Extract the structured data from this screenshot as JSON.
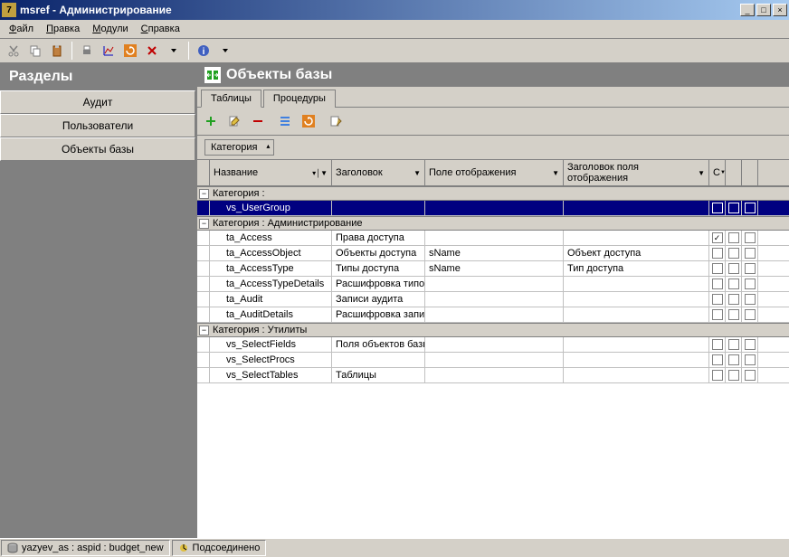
{
  "window": {
    "title": "msref - Администрирование"
  },
  "menu": {
    "items": [
      "Файл",
      "Правка",
      "Модули",
      "Справка"
    ]
  },
  "sidebar": {
    "header": "Разделы",
    "items": [
      "Аудит",
      "Пользователи",
      "Объекты базы"
    ],
    "active_index": 2
  },
  "content": {
    "header_title": "Объекты базы",
    "tabs": [
      "Таблицы",
      "Процедуры"
    ],
    "active_tab": 0
  },
  "grouping": {
    "field": "Категория"
  },
  "columns": [
    "Название",
    "Заголовок",
    "Поле отображения",
    "Заголовок поля отображения",
    "С",
    "",
    ""
  ],
  "groups": [
    {
      "label": "Категория :",
      "rows": [
        {
          "name": "vs_UserGroup",
          "title": "",
          "dispfield": "",
          "disptitle": "",
          "c1": false,
          "c2": false,
          "c3": false,
          "selected": true
        }
      ]
    },
    {
      "label": "Категория : Администрирование",
      "rows": [
        {
          "name": "ta_Access",
          "title": "Права доступа",
          "dispfield": "",
          "disptitle": "",
          "c1": true,
          "c2": false,
          "c3": false
        },
        {
          "name": "ta_AccessObject",
          "title": "Объекты доступа",
          "dispfield": "sName",
          "disptitle": "Объект доступа",
          "c1": false,
          "c2": false,
          "c3": false
        },
        {
          "name": "ta_AccessType",
          "title": "Типы доступа",
          "dispfield": "sName",
          "disptitle": "Тип доступа",
          "c1": false,
          "c2": false,
          "c3": false
        },
        {
          "name": "ta_AccessTypeDetails",
          "title": "Расшифровка типов",
          "dispfield": "",
          "disptitle": "",
          "c1": false,
          "c2": false,
          "c3": false
        },
        {
          "name": "ta_Audit",
          "title": "Записи аудита",
          "dispfield": "",
          "disptitle": "",
          "c1": false,
          "c2": false,
          "c3": false
        },
        {
          "name": "ta_AuditDetails",
          "title": "Расшифровка записи",
          "dispfield": "",
          "disptitle": "",
          "c1": false,
          "c2": false,
          "c3": false
        }
      ]
    },
    {
      "label": "Категория : Утилиты",
      "rows": [
        {
          "name": "vs_SelectFields",
          "title": "Поля объектов базы",
          "dispfield": "",
          "disptitle": "",
          "c1": false,
          "c2": false,
          "c3": false
        },
        {
          "name": "vs_SelectProcs",
          "title": "",
          "dispfield": "",
          "disptitle": "",
          "c1": false,
          "c2": false,
          "c3": false
        },
        {
          "name": "vs_SelectTables",
          "title": "Таблицы",
          "dispfield": "",
          "disptitle": "",
          "c1": false,
          "c2": false,
          "c3": false
        }
      ]
    }
  ],
  "status": {
    "connection": "yazyev_as : aspid : budget_new",
    "state": "Подсоединено"
  },
  "colors": {
    "titlebar_start": "#0a246a",
    "titlebar_end": "#a6caf0",
    "face": "#d4d0c8",
    "header_gray": "#808080",
    "selection": "#000080"
  }
}
